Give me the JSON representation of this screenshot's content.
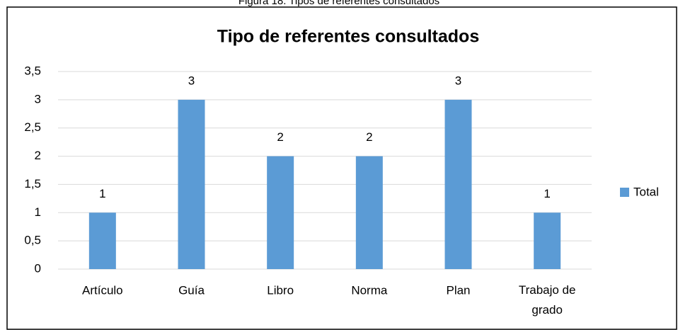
{
  "caption": "Figura 18. Tipos de referentes consultados",
  "chart_data": {
    "type": "bar",
    "title": "Tipo de referentes consultados",
    "categories": [
      "Artículo",
      "Guía",
      "Libro",
      "Norma",
      "Plan",
      "Trabajo de grado"
    ],
    "series": [
      {
        "name": "Total",
        "color": "#5b9bd5",
        "values": [
          1,
          3,
          2,
          2,
          3,
          1
        ]
      }
    ],
    "ylim": [
      0,
      3.5
    ],
    "yticks": [
      0,
      {
        "value": 0.5,
        "label": "0,5"
      },
      1,
      {
        "value": 1.5,
        "label": "1,5"
      },
      2,
      {
        "value": 2.5,
        "label": "2,5"
      },
      3,
      {
        "value": 3.5,
        "label": "3,5"
      }
    ],
    "grid": true,
    "legend": "right"
  }
}
